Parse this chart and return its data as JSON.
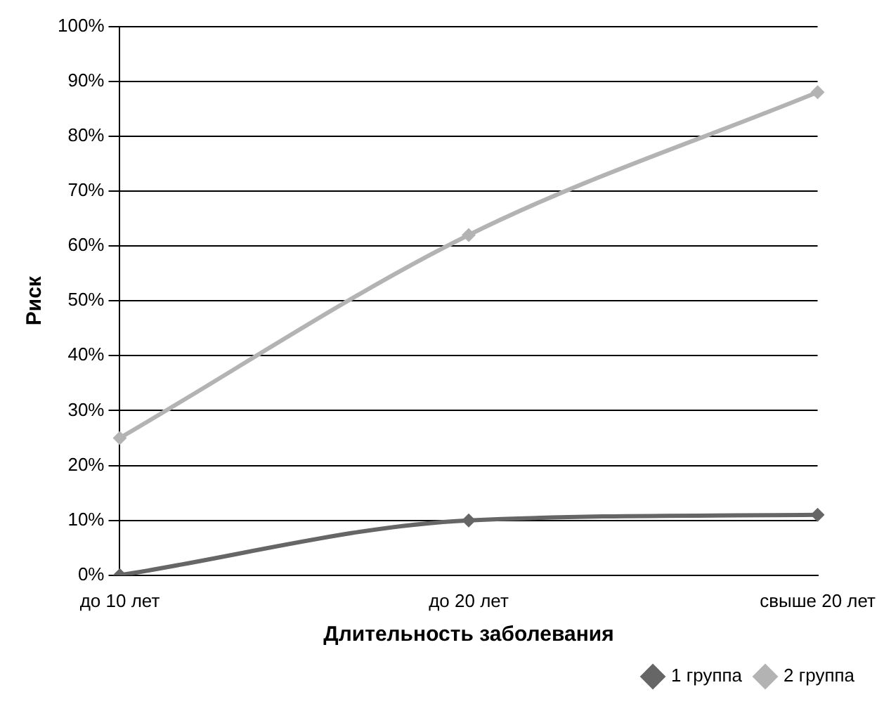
{
  "chart_data": {
    "type": "line",
    "xlabel": "Длительность заболевания",
    "ylabel": "Риск",
    "categories": [
      "до 10 лет",
      "до 20 лет",
      "свыше 20 лет"
    ],
    "series": [
      {
        "name": "1 группа",
        "color": "#666666",
        "values": [
          0,
          10,
          11
        ]
      },
      {
        "name": "2 группа",
        "color": "#b3b3b3",
        "values": [
          25,
          62,
          88
        ]
      }
    ],
    "ylim": [
      0,
      100
    ],
    "yticks": [
      {
        "value": 0,
        "label": "0%"
      },
      {
        "value": 10,
        "label": "10%"
      },
      {
        "value": 20,
        "label": "20%"
      },
      {
        "value": 30,
        "label": "30%"
      },
      {
        "value": 40,
        "label": "40%"
      },
      {
        "value": 50,
        "label": "50%"
      },
      {
        "value": 60,
        "label": "60%"
      },
      {
        "value": 70,
        "label": "70%"
      },
      {
        "value": 80,
        "label": "80%"
      },
      {
        "value": 90,
        "label": "90%"
      },
      {
        "value": 100,
        "label": "100%"
      }
    ],
    "grid": "y",
    "legend": "bottom right",
    "marker": "diamond",
    "line_style": "solid"
  }
}
